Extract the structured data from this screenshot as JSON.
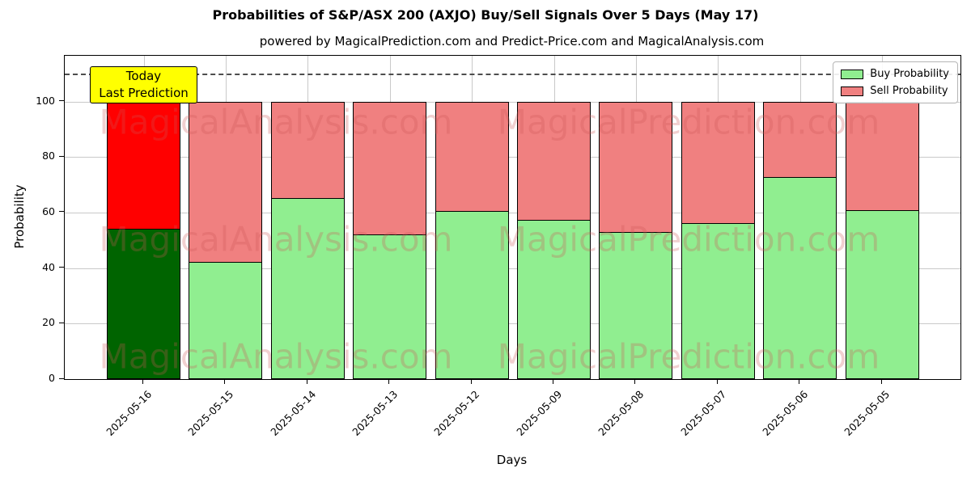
{
  "title": "Probabilities of S&P/ASX 200 (AXJO) Buy/Sell Signals Over 5 Days (May 17)",
  "subtitle": "powered by MagicalPrediction.com and Predict-Price.com and MagicalAnalysis.com",
  "annotation": {
    "lines": [
      "Today",
      "Last Prediction"
    ],
    "bg_color": "#ffff00"
  },
  "watermarks": {
    "texts": [
      "MagicalAnalysis.com",
      "MagicalPrediction.com"
    ],
    "color": "rgba(205,85,85,0.28)"
  },
  "chart_data": {
    "type": "bar",
    "stacked": true,
    "title": "Probabilities of S&P/ASX 200 (AXJO) Buy/Sell Signals Over 5 Days (May 17)",
    "xlabel": "Days",
    "ylabel": "Probability",
    "categories": [
      "2025-05-16",
      "2025-05-15",
      "2025-05-14",
      "2025-05-13",
      "2025-05-12",
      "2025-05-09",
      "2025-05-08",
      "2025-05-07",
      "2025-05-06",
      "2025-05-05"
    ],
    "series": [
      {
        "name": "Buy Probability",
        "color": "#90EE90",
        "values": [
          54.3,
          42.5,
          65.4,
          52.4,
          60.6,
          57.5,
          53.1,
          56.3,
          73.0,
          60.9
        ]
      },
      {
        "name": "Sell Probability",
        "color": "#F08080",
        "values": [
          45.7,
          57.5,
          34.6,
          47.6,
          39.4,
          42.5,
          46.9,
          43.7,
          27.0,
          39.1
        ]
      }
    ],
    "highlight": {
      "category": "2025-05-16",
      "index": 0,
      "buy_color": "#006400",
      "sell_color": "#ff0000",
      "label": "Today Last Prediction"
    },
    "yticks": [
      0,
      20,
      40,
      60,
      80,
      100
    ],
    "ylim": [
      0,
      116.5
    ],
    "dashed_line_y": 110,
    "grid": true,
    "legend_position": "upper right"
  }
}
